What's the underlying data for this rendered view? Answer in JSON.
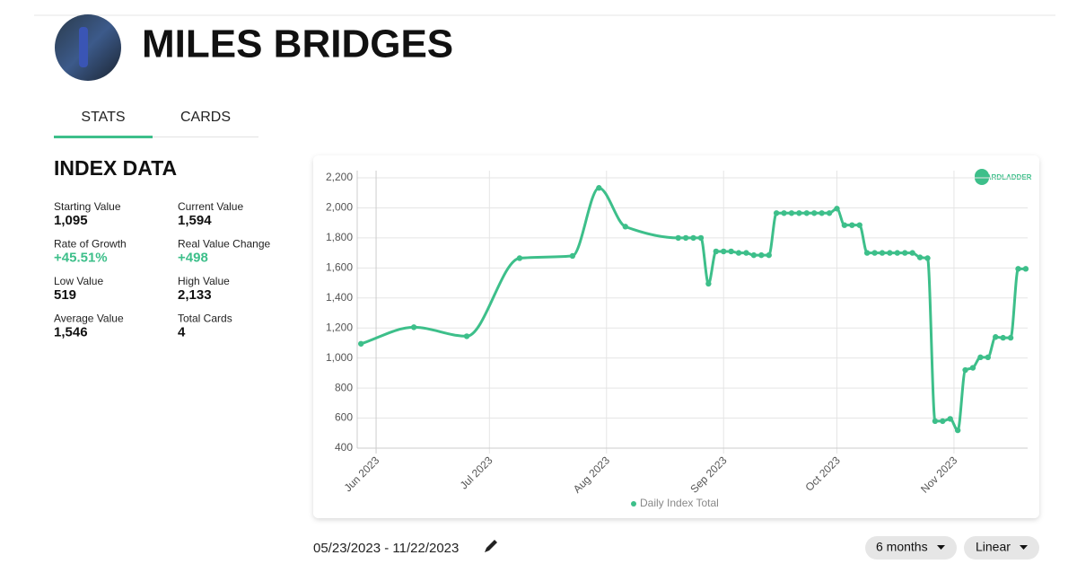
{
  "header": {
    "name": "MILES BRIDGES"
  },
  "tabs": [
    "STATS",
    "CARDS"
  ],
  "index_title": "INDEX DATA",
  "stats": [
    {
      "label": "Starting Value",
      "value": "1,095"
    },
    {
      "label": "Current Value",
      "value": "1,594"
    },
    {
      "label": "Rate of Growth",
      "value": "+45.51%"
    },
    {
      "label": "Real Value Change",
      "value": "+498"
    },
    {
      "label": "Low Value",
      "value": "519"
    },
    {
      "label": "High Value",
      "value": "2,133"
    },
    {
      "label": "Average Value",
      "value": "1,546"
    },
    {
      "label": "Total Cards",
      "value": "4"
    }
  ],
  "logo": "CARDLADDER",
  "chart_data": {
    "type": "line",
    "x": [
      148,
      162,
      176,
      190,
      204,
      211,
      218,
      232,
      234,
      236,
      238,
      240,
      242,
      244,
      246,
      248,
      250,
      252,
      254,
      256,
      258,
      260,
      262,
      264,
      266,
      268,
      270,
      272,
      274,
      276,
      278,
      280,
      282,
      284,
      286,
      288,
      290,
      292,
      294,
      296,
      298,
      300,
      302,
      304,
      306,
      308,
      310,
      312,
      314,
      316,
      318,
      320,
      322,
      324
    ],
    "series": [
      {
        "name": "Daily Index Total",
        "color": "#3dbf8a",
        "values": [
          1095,
          1205,
          1145,
          1665,
          1680,
          2133,
          1875,
          1800,
          1800,
          1800,
          1800,
          1495,
          1710,
          1710,
          1710,
          1700,
          1700,
          1685,
          1685,
          1685,
          1965,
          1965,
          1965,
          1965,
          1965,
          1965,
          1965,
          1965,
          1995,
          1885,
          1885,
          1885,
          1700,
          1700,
          1700,
          1700,
          1700,
          1700,
          1700,
          1670,
          1665,
          580,
          580,
          595,
          519,
          920,
          935,
          1005,
          1005,
          1140,
          1135,
          1135,
          1594,
          1594
        ]
      }
    ],
    "xlim": [
      147,
      324.5
    ],
    "xticks": [
      {
        "value": 152,
        "label": "Jun 2023"
      },
      {
        "value": 182,
        "label": "Jul 2023"
      },
      {
        "value": 213,
        "label": "Aug 2023"
      },
      {
        "value": 244,
        "label": "Sep 2023"
      },
      {
        "value": 274,
        "label": "Oct 2023"
      },
      {
        "value": 305,
        "label": "Nov 2023"
      }
    ],
    "ylim": [
      400,
      2200
    ],
    "yticks": [
      400,
      600,
      800,
      {
        "value": 1000,
        "label": "1,000"
      },
      {
        "value": 1200,
        "label": "1,200"
      },
      {
        "value": 1400,
        "label": "1,400"
      },
      {
        "value": 1600,
        "label": "1,600"
      },
      {
        "value": 1800,
        "label": "1,800"
      },
      {
        "value": 2000,
        "label": "2,000"
      },
      {
        "value": 2200,
        "label": "2,200"
      }
    ],
    "grid": true
  },
  "footer": {
    "date_range": "05/23/2023 - 11/22/2023",
    "range_button": "6 months",
    "scale_button": "Linear"
  }
}
